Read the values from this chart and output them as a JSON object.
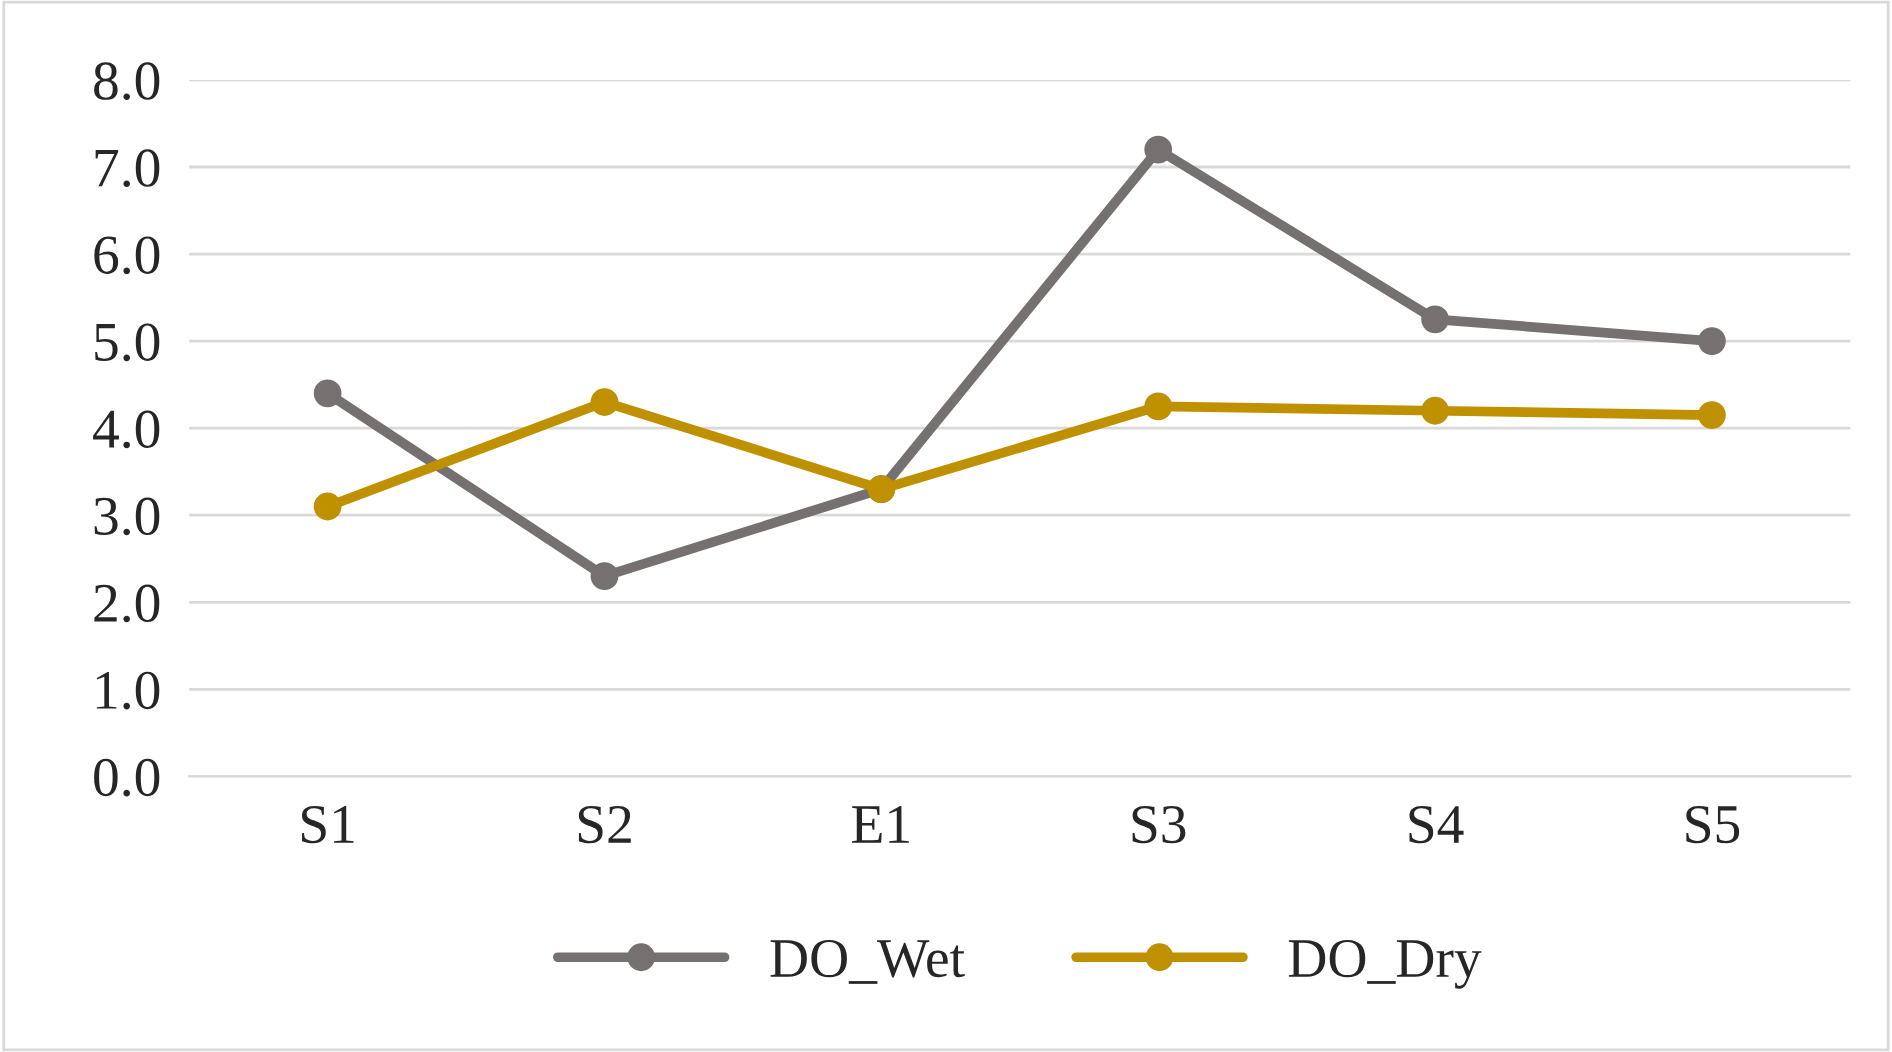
{
  "chart_data": {
    "type": "line",
    "categories": [
      "S1",
      "S2",
      "E1",
      "S3",
      "S4",
      "S5"
    ],
    "series": [
      {
        "name": "DO_Wet",
        "color": "#767171",
        "values": [
          4.4,
          2.3,
          3.3,
          7.2,
          5.25,
          5.0
        ]
      },
      {
        "name": "DO_Dry",
        "color": "#bf9000",
        "values": [
          3.1,
          4.3,
          3.3,
          4.25,
          4.2,
          4.15
        ]
      }
    ],
    "ylim": [
      0,
      8
    ],
    "yticks": [
      {
        "value": 0,
        "label": "0.0"
      },
      {
        "value": 1,
        "label": "1.0"
      },
      {
        "value": 2,
        "label": "2.0"
      },
      {
        "value": 3,
        "label": "3.0"
      },
      {
        "value": 4,
        "label": "4.0"
      },
      {
        "value": 5,
        "label": "5.0"
      },
      {
        "value": 6,
        "label": "6.0"
      },
      {
        "value": 7,
        "label": "7.0"
      },
      {
        "value": 8,
        "label": "8.0"
      }
    ],
    "grid": "y",
    "legend": "bottom",
    "marker": "circle",
    "line_style": "solid"
  }
}
